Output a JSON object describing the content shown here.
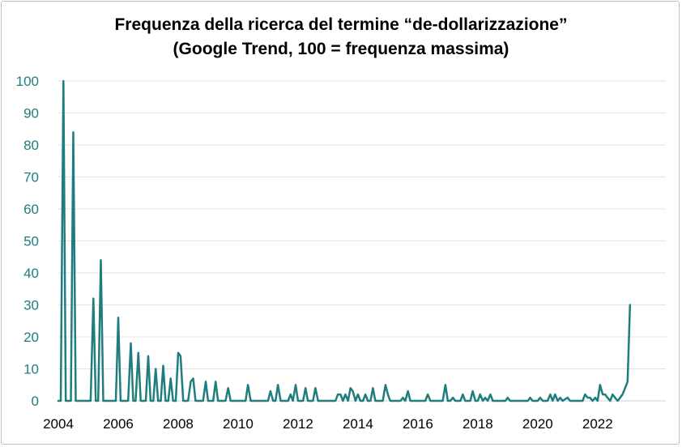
{
  "chart_data": {
    "type": "line",
    "title": "Frequenza della ricerca del termine “de-dollarizzazione”",
    "subtitle": "(Google Trend, 100 =  frequenza massima)",
    "xlabel": "",
    "ylabel": "",
    "ylim": [
      0,
      100
    ],
    "xlim": [
      2004.0,
      2023.6
    ],
    "yticks": [
      0,
      10,
      20,
      30,
      40,
      50,
      60,
      70,
      80,
      90,
      100
    ],
    "xticks": [
      "2004",
      "2006",
      "2008",
      "2010",
      "2012",
      "2014",
      "2016",
      "2018",
      "2020",
      "2022"
    ],
    "grid": true,
    "series": [
      {
        "name": "de-dollarizzazione",
        "color": "#1f7d7d",
        "points": [
          [
            2004.0,
            0
          ],
          [
            2004.08,
            0
          ],
          [
            2004.17,
            100
          ],
          [
            2004.25,
            0
          ],
          [
            2004.42,
            0
          ],
          [
            2004.5,
            84
          ],
          [
            2004.58,
            0
          ],
          [
            2005.0,
            0
          ],
          [
            2005.08,
            0
          ],
          [
            2005.17,
            32
          ],
          [
            2005.25,
            0
          ],
          [
            2005.33,
            0
          ],
          [
            2005.42,
            44
          ],
          [
            2005.5,
            0
          ],
          [
            2005.92,
            0
          ],
          [
            2006.0,
            26
          ],
          [
            2006.08,
            0
          ],
          [
            2006.33,
            0
          ],
          [
            2006.42,
            18
          ],
          [
            2006.5,
            0
          ],
          [
            2006.58,
            0
          ],
          [
            2006.67,
            15
          ],
          [
            2006.75,
            0
          ],
          [
            2006.92,
            0
          ],
          [
            2007.0,
            14
          ],
          [
            2007.08,
            0
          ],
          [
            2007.17,
            0
          ],
          [
            2007.25,
            10
          ],
          [
            2007.33,
            0
          ],
          [
            2007.42,
            0
          ],
          [
            2007.5,
            11
          ],
          [
            2007.58,
            0
          ],
          [
            2007.67,
            0
          ],
          [
            2007.75,
            7
          ],
          [
            2007.83,
            0
          ],
          [
            2007.92,
            0
          ],
          [
            2008.0,
            15
          ],
          [
            2008.08,
            14
          ],
          [
            2008.17,
            0
          ],
          [
            2008.33,
            0
          ],
          [
            2008.42,
            6
          ],
          [
            2008.5,
            7
          ],
          [
            2008.58,
            0
          ],
          [
            2008.83,
            0
          ],
          [
            2008.92,
            6
          ],
          [
            2009.0,
            0
          ],
          [
            2009.17,
            0
          ],
          [
            2009.25,
            6
          ],
          [
            2009.33,
            0
          ],
          [
            2009.58,
            0
          ],
          [
            2009.67,
            4
          ],
          [
            2009.75,
            0
          ],
          [
            2010.25,
            0
          ],
          [
            2010.33,
            5
          ],
          [
            2010.42,
            0
          ],
          [
            2011.0,
            0
          ],
          [
            2011.08,
            3
          ],
          [
            2011.17,
            0
          ],
          [
            2011.25,
            0
          ],
          [
            2011.33,
            5
          ],
          [
            2011.42,
            0
          ],
          [
            2011.67,
            0
          ],
          [
            2011.75,
            2
          ],
          [
            2011.83,
            0
          ],
          [
            2011.92,
            5
          ],
          [
            2012.0,
            0
          ],
          [
            2012.17,
            0
          ],
          [
            2012.25,
            4
          ],
          [
            2012.33,
            0
          ],
          [
            2012.5,
            0
          ],
          [
            2012.58,
            4
          ],
          [
            2012.67,
            0
          ],
          [
            2013.25,
            0
          ],
          [
            2013.33,
            2
          ],
          [
            2013.42,
            2
          ],
          [
            2013.5,
            0
          ],
          [
            2013.58,
            2
          ],
          [
            2013.67,
            0
          ],
          [
            2013.75,
            4
          ],
          [
            2013.83,
            3
          ],
          [
            2013.92,
            0
          ],
          [
            2014.0,
            2
          ],
          [
            2014.08,
            0
          ],
          [
            2014.17,
            0
          ],
          [
            2014.25,
            2
          ],
          [
            2014.33,
            0
          ],
          [
            2014.42,
            0
          ],
          [
            2014.5,
            4
          ],
          [
            2014.58,
            0
          ],
          [
            2014.75,
            0
          ],
          [
            2014.83,
            0
          ],
          [
            2014.92,
            5
          ],
          [
            2015.0,
            2
          ],
          [
            2015.08,
            0
          ],
          [
            2015.42,
            0
          ],
          [
            2015.5,
            1
          ],
          [
            2015.58,
            0
          ],
          [
            2015.67,
            3
          ],
          [
            2015.75,
            0
          ],
          [
            2016.25,
            0
          ],
          [
            2016.33,
            2
          ],
          [
            2016.42,
            0
          ],
          [
            2016.83,
            0
          ],
          [
            2016.92,
            5
          ],
          [
            2017.0,
            0
          ],
          [
            2017.08,
            0
          ],
          [
            2017.17,
            1
          ],
          [
            2017.25,
            0
          ],
          [
            2017.42,
            0
          ],
          [
            2017.5,
            2
          ],
          [
            2017.58,
            0
          ],
          [
            2017.75,
            0
          ],
          [
            2017.83,
            3
          ],
          [
            2017.92,
            0
          ],
          [
            2018.0,
            0
          ],
          [
            2018.08,
            2
          ],
          [
            2018.17,
            0
          ],
          [
            2018.25,
            1
          ],
          [
            2018.33,
            0
          ],
          [
            2018.42,
            2
          ],
          [
            2018.5,
            0
          ],
          [
            2018.92,
            0
          ],
          [
            2019.0,
            1
          ],
          [
            2019.08,
            0
          ],
          [
            2019.67,
            0
          ],
          [
            2019.75,
            1
          ],
          [
            2019.83,
            0
          ],
          [
            2020.0,
            0
          ],
          [
            2020.08,
            1
          ],
          [
            2020.17,
            0
          ],
          [
            2020.33,
            0
          ],
          [
            2020.42,
            2
          ],
          [
            2020.5,
            0
          ],
          [
            2020.58,
            2
          ],
          [
            2020.67,
            0
          ],
          [
            2020.75,
            1
          ],
          [
            2020.83,
            0
          ],
          [
            2021.0,
            1
          ],
          [
            2021.08,
            0
          ],
          [
            2021.5,
            0
          ],
          [
            2021.58,
            2
          ],
          [
            2021.67,
            1
          ],
          [
            2021.75,
            1
          ],
          [
            2021.83,
            0
          ],
          [
            2021.92,
            1
          ],
          [
            2022.0,
            0
          ],
          [
            2022.08,
            5
          ],
          [
            2022.17,
            2
          ],
          [
            2022.25,
            2
          ],
          [
            2022.33,
            1
          ],
          [
            2022.42,
            0
          ],
          [
            2022.5,
            2
          ],
          [
            2022.58,
            1
          ],
          [
            2022.67,
            0
          ],
          [
            2022.75,
            1
          ],
          [
            2022.83,
            2
          ],
          [
            2022.92,
            4
          ],
          [
            2023.0,
            6
          ],
          [
            2023.08,
            30
          ]
        ]
      }
    ]
  }
}
